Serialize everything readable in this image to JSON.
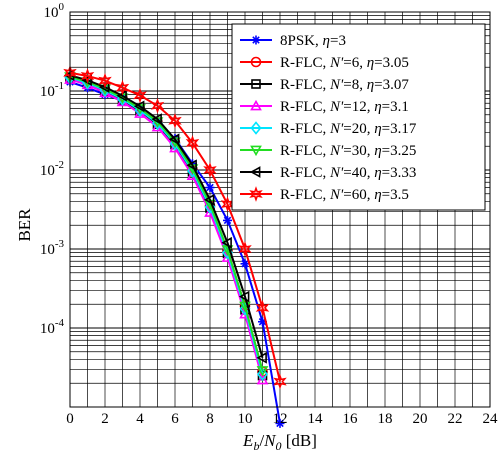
{
  "chart_data": {
    "type": "line",
    "title": "",
    "xlabel": {
      "main": "E",
      "main_sub": "b",
      "slash": "/",
      "den": "N",
      "den_sub": "0",
      "unit": " [dB]"
    },
    "ylabel": "BER",
    "xlim": [
      0,
      24
    ],
    "ylim_exp": [
      -5,
      0
    ],
    "yscale": "log",
    "grid": true,
    "legend_position": "top-right",
    "x_ticks": [
      "0",
      "2",
      "4",
      "6",
      "8",
      "10",
      "12",
      "14",
      "16",
      "18",
      "20",
      "22",
      "24"
    ],
    "y_ticks": [
      {
        "exp": -4,
        "base": "10",
        "sup": "-4"
      },
      {
        "exp": -3,
        "base": "10",
        "sup": "-3"
      },
      {
        "exp": -2,
        "base": "10",
        "sup": "-2"
      },
      {
        "exp": -1,
        "base": "10",
        "sup": "-1"
      },
      {
        "exp": 0,
        "base": "10",
        "sup": "0"
      }
    ],
    "series": [
      {
        "name": "8PSK",
        "eta": "3",
        "nprime": "",
        "color": "#0000ff",
        "marker": "asterisk",
        "x": [
          0,
          1,
          2,
          3,
          4,
          5,
          6,
          7,
          8,
          9,
          10,
          11,
          12
        ],
        "y": [
          0.13,
          0.11,
          0.09,
          0.075,
          0.058,
          0.04,
          0.025,
          0.012,
          0.006,
          0.0023,
          0.00065,
          0.00012,
          6.2e-06
        ]
      },
      {
        "name": "R-FLC",
        "eta": "3.05",
        "nprime": "6",
        "color": "#ff0000",
        "marker": "circle",
        "x": [
          0,
          1,
          2,
          3,
          4,
          5,
          6,
          7,
          8,
          9,
          10,
          11
        ],
        "y": [
          0.15,
          0.13,
          0.105,
          0.08,
          0.058,
          0.04,
          0.022,
          0.01,
          0.0035,
          0.00095,
          0.00019,
          2.8e-05
        ]
      },
      {
        "name": "R-FLC",
        "eta": "3.07",
        "nprime": "8",
        "color": "#000000",
        "marker": "square",
        "x": [
          0,
          1,
          2,
          3,
          4,
          5,
          6,
          7,
          8,
          9,
          10,
          11
        ],
        "y": [
          0.145,
          0.125,
          0.1,
          0.077,
          0.056,
          0.038,
          0.021,
          0.0095,
          0.0033,
          0.00088,
          0.00017,
          2.5e-05
        ]
      },
      {
        "name": "R-FLC",
        "eta": "3.1",
        "nprime": "12",
        "color": "#ff00ff",
        "marker": "triangle-up",
        "x": [
          0,
          1,
          2,
          3,
          4,
          5,
          6,
          7,
          8,
          9,
          10,
          11
        ],
        "y": [
          0.14,
          0.12,
          0.095,
          0.073,
          0.052,
          0.035,
          0.019,
          0.0085,
          0.0029,
          0.00078,
          0.00015,
          2.2e-05
        ]
      },
      {
        "name": "R-FLC",
        "eta": "3.17",
        "nprime": "20",
        "color": "#00e5ff",
        "marker": "diamond",
        "x": [
          0,
          1,
          2,
          3,
          4,
          5,
          6,
          7,
          8,
          9,
          10,
          11
        ],
        "y": [
          0.148,
          0.127,
          0.102,
          0.079,
          0.057,
          0.039,
          0.0215,
          0.0097,
          0.0034,
          0.0009,
          0.000175,
          2.6e-05
        ]
      },
      {
        "name": "R-FLC",
        "eta": "3.25",
        "nprime": "30",
        "color": "#22dd22",
        "marker": "triangle-down",
        "x": [
          0,
          1,
          2,
          3,
          4,
          5,
          6,
          7,
          8,
          9,
          10,
          11
        ],
        "y": [
          0.152,
          0.131,
          0.106,
          0.082,
          0.06,
          0.041,
          0.0228,
          0.0104,
          0.0037,
          0.00098,
          0.00019,
          2.9e-05
        ]
      },
      {
        "name": "R-FLC",
        "eta": "3.33",
        "nprime": "40",
        "color": "#000000",
        "marker": "triangle-left",
        "x": [
          0,
          1,
          2,
          3,
          4,
          5,
          6,
          7,
          8,
          9,
          10,
          11
        ],
        "y": [
          0.158,
          0.137,
          0.112,
          0.087,
          0.064,
          0.044,
          0.0245,
          0.0115,
          0.0042,
          0.0012,
          0.00025,
          4.2e-05
        ]
      },
      {
        "name": "R-FLC",
        "eta": "3.5",
        "nprime": "60",
        "color": "#ff0000",
        "marker": "hexagram",
        "x": [
          0,
          1,
          2,
          3,
          4,
          5,
          6,
          7,
          8,
          9,
          10,
          11,
          12
        ],
        "y": [
          0.17,
          0.155,
          0.135,
          0.11,
          0.088,
          0.065,
          0.042,
          0.022,
          0.01,
          0.0037,
          0.001,
          0.00018,
          2.1e-05
        ]
      }
    ]
  }
}
